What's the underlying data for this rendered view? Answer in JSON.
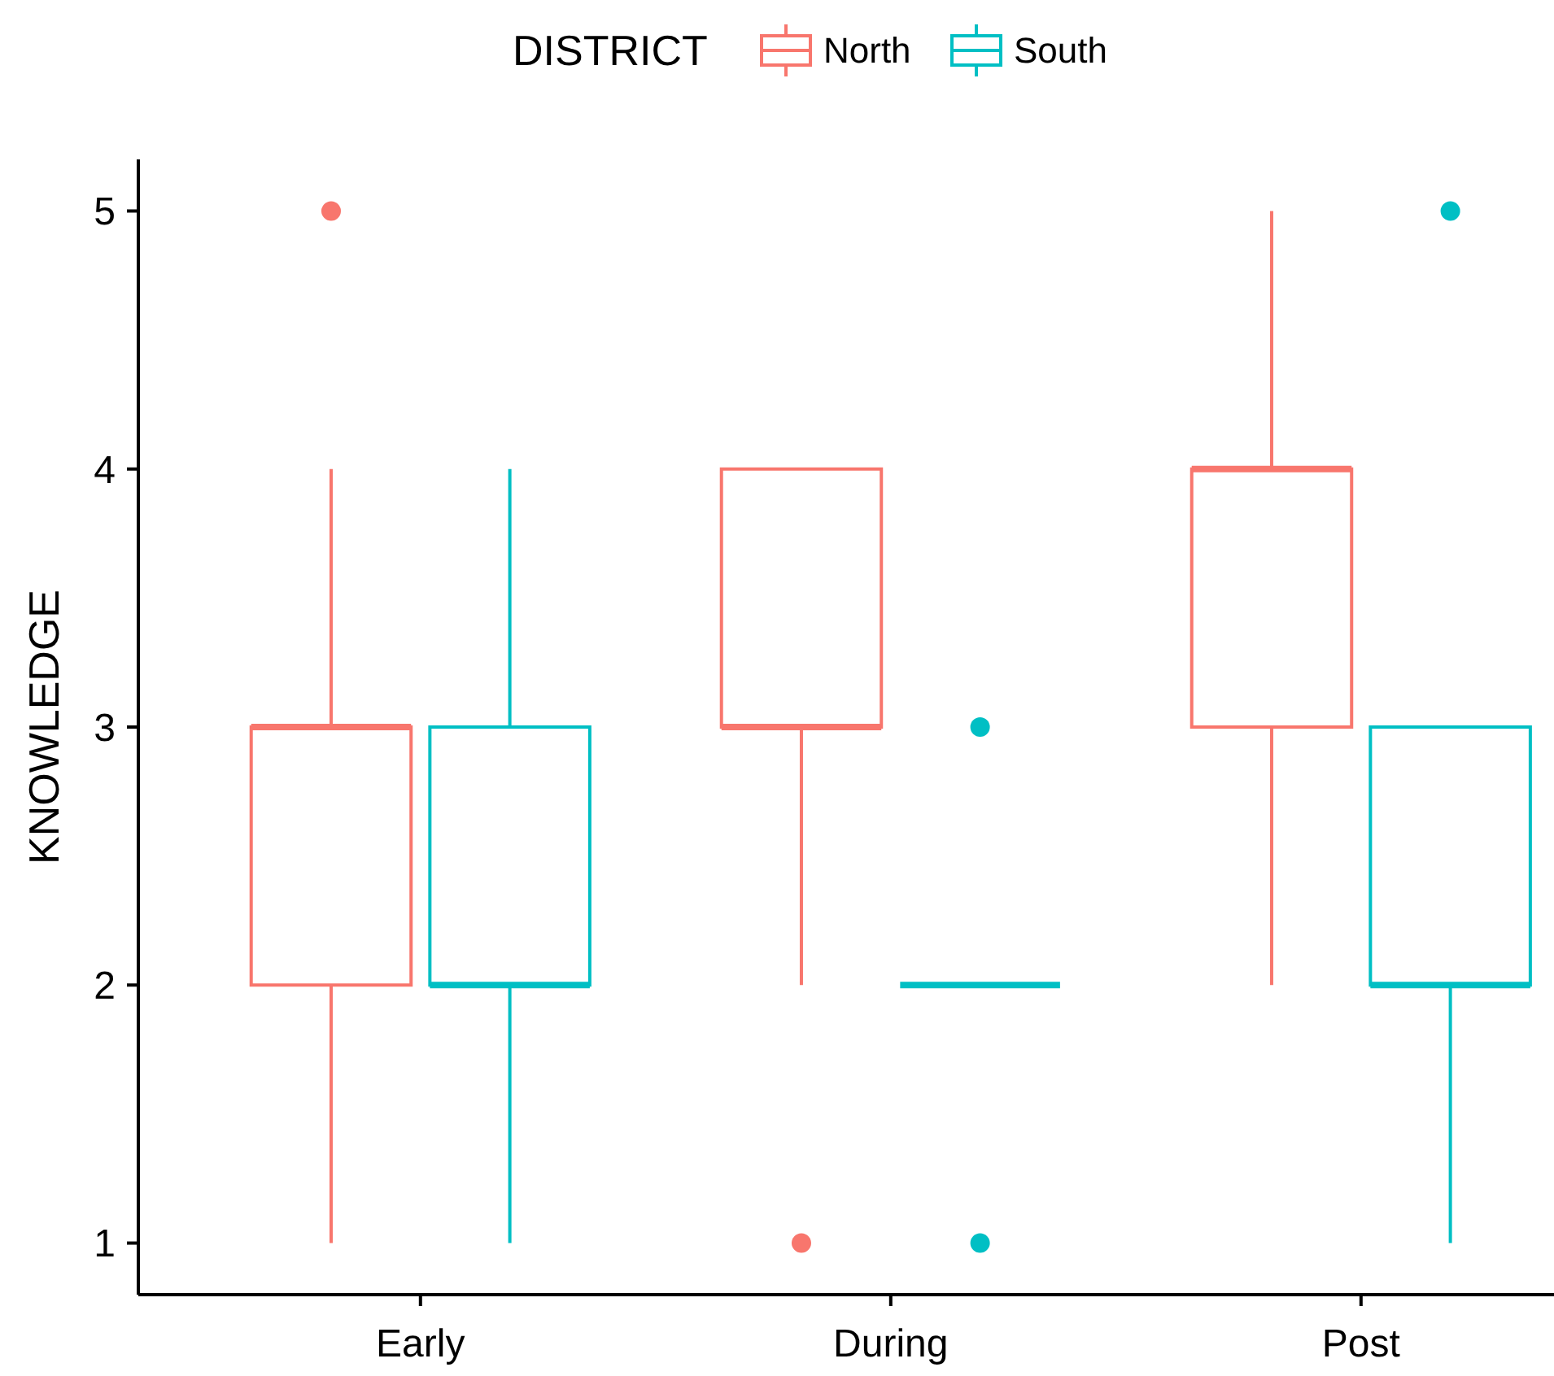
{
  "chart_data": {
    "type": "box",
    "ylabel": "KNOWLEDGE",
    "legend_title": "DISTRICT",
    "legend": "top",
    "grid": false,
    "categories": [
      "Early",
      "During",
      "Post"
    ],
    "ylim": [
      0.8,
      5.2
    ],
    "yticks": [
      1,
      2,
      3,
      4,
      5
    ],
    "series": [
      {
        "name": "North",
        "color": "#f8766d",
        "boxes": [
          {
            "low": 1,
            "q1": 2,
            "median": 3,
            "q3": 3,
            "high": 4,
            "outliers": [
              5
            ]
          },
          {
            "low": 2,
            "q1": 3,
            "median": 3,
            "q3": 4,
            "high": 4,
            "outliers": [
              1
            ]
          },
          {
            "low": 2,
            "q1": 3,
            "median": 4,
            "q3": 4,
            "high": 5
          }
        ]
      },
      {
        "name": "South",
        "color": "#00bfc4",
        "boxes": [
          {
            "low": 1,
            "q1": 2,
            "median": 2,
            "q3": 3,
            "high": 4
          },
          {
            "low": 2,
            "q1": 2,
            "median": 2,
            "q3": 2,
            "high": 2,
            "outliers": [
              3,
              1
            ]
          },
          {
            "low": 1,
            "q1": 2,
            "median": 2,
            "q3": 3,
            "high": 3,
            "outliers": [
              5
            ]
          }
        ]
      }
    ]
  }
}
